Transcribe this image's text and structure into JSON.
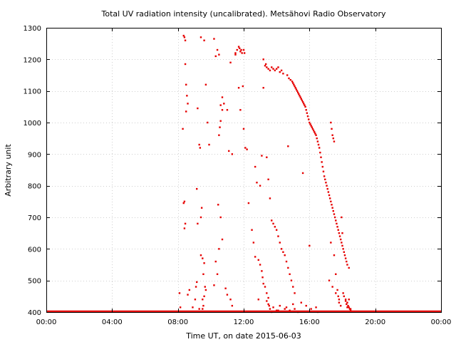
{
  "chart_data": {
    "type": "scatter",
    "title": "Total UV radiation intensity (uncalibrated). Metsähovi Radio Observatory",
    "xlabel": "Time UT, on date 2015-06-03",
    "ylabel": "Arbitrary unit",
    "xlim": [
      0,
      24
    ],
    "ylim": [
      400,
      1300
    ],
    "x_tick_labels": [
      "00:00",
      "04:00",
      "08:00",
      "12:00",
      "16:00",
      "20:00",
      "00:00"
    ],
    "x_ticks": [
      0,
      4,
      8,
      12,
      16,
      20,
      24
    ],
    "y_ticks": [
      400,
      500,
      600,
      700,
      800,
      900,
      1000,
      1100,
      1200,
      1300
    ],
    "grid": true,
    "legend": "none",
    "series_color": "#e60000",
    "baseline": {
      "value": 400,
      "x_range": [
        0,
        24
      ]
    },
    "series": [
      {
        "x": [
          8.1,
          8.15,
          8.3,
          8.35,
          8.4,
          8.45,
          8.4,
          8.35,
          8.4,
          8.45,
          8.5,
          8.55,
          8.6,
          8.5,
          8.45,
          8.6,
          8.7,
          8.9,
          9.05,
          9.1,
          9.15,
          9.2,
          9.15,
          9.3,
          9.4,
          9.6,
          9.7,
          9.8,
          9.9,
          9.35,
          9.4,
          9.5,
          9.6,
          9.55,
          9.65,
          9.7,
          9.6,
          9.5,
          9.55,
          9.5,
          9.45,
          9.4,
          9.2,
          9.3,
          10.2,
          10.3,
          10.4,
          10.5,
          10.6,
          10.7,
          10.8,
          11.0,
          11.1,
          11.3,
          11.5,
          11.6,
          11.7,
          11.75,
          11.8,
          11.85,
          11.9,
          12.0,
          12.05,
          11.95,
          11.7,
          11.5,
          11.2,
          10.7,
          10.6,
          10.55,
          10.5,
          10.45,
          10.6,
          10.7,
          10.5,
          10.3,
          10.4,
          10.2,
          10.9,
          11.0,
          11.2,
          11.3,
          11.8,
          12.0,
          12.1,
          12.2,
          12.3,
          12.5,
          12.6,
          12.7,
          12.9,
          13.0,
          13.1,
          13.15,
          13.2,
          13.3,
          13.4,
          13.5,
          13.55,
          13.6,
          12.7,
          12.8,
          13.0,
          13.1,
          13.2,
          13.3,
          13.35,
          13.4,
          13.5,
          13.6,
          13.7,
          13.8,
          13.9,
          14.0,
          14.1,
          14.2,
          14.3,
          14.4,
          13.2,
          13.4,
          13.5,
          13.6,
          13.7,
          13.8,
          13.9,
          14.0,
          14.1,
          14.2,
          14.3,
          14.4,
          14.5,
          14.6,
          14.7,
          14.8,
          14.9,
          15.0,
          15.1,
          12.9,
          13.4,
          13.5,
          13.8,
          14.0,
          13.7,
          14.2,
          14.5,
          14.1,
          14.6,
          15.0,
          15.5,
          15.1,
          15.3,
          15.8,
          16.1,
          14.8,
          16.4,
          14.65,
          14.75,
          14.85,
          14.95,
          15.0,
          15.05,
          15.1,
          15.15,
          15.2,
          15.25,
          15.3,
          15.35,
          15.4,
          15.45,
          15.5,
          15.55,
          15.6,
          15.65,
          15.7,
          15.75,
          15.8,
          15.85,
          15.9,
          15.95,
          16.0,
          16.05,
          16.1,
          16.15,
          16.2,
          16.25,
          16.3,
          16.35,
          16.4,
          16.45,
          16.5,
          16.55,
          16.6,
          16.65,
          16.7,
          16.75,
          16.8,
          16.85,
          16.9,
          16.95,
          17.0,
          17.05,
          17.1,
          17.15,
          17.2,
          17.25,
          17.3,
          17.35,
          17.4,
          17.45,
          17.5,
          17.55,
          17.6,
          17.65,
          17.7,
          17.75,
          17.8,
          17.85,
          17.9,
          17.95,
          18.0,
          18.05,
          18.1,
          18.15,
          18.2,
          18.25,
          18.3,
          18.4,
          14.7,
          15.6,
          16.0,
          16.5,
          17.3,
          17.5,
          17.6,
          17.7,
          17.75,
          17.8,
          17.9,
          17.3,
          17.35,
          17.4,
          17.5,
          17.45,
          17.95,
          18.0,
          18.05,
          18.1,
          18.2,
          18.3,
          18.35,
          18.4,
          18.45,
          18.5,
          18.55,
          18.2,
          18.25,
          18.3,
          18.4,
          18.5,
          17.2,
          17.4,
          17.6,
          17.8
        ],
        "y": [
          460,
          415,
          980,
          745,
          750,
          1260,
          1270,
          1275,
          665,
          680,
          1120,
          1085,
          1060,
          1035,
          1185,
          455,
          470,
          415,
          440,
          480,
          495,
          1045,
          790,
          930,
          1270,
          1260,
          1120,
          1000,
          930,
          920,
          580,
          570,
          555,
          520,
          480,
          470,
          450,
          440,
          420,
          410,
          730,
          700,
          680,
          410,
          1265,
          1210,
          1230,
          1215,
          1055,
          1080,
          1060,
          1040,
          910,
          900,
          1220,
          1230,
          1240,
          1235,
          1225,
          1230,
          1220,
          1230,
          1220,
          1115,
          1110,
          1215,
          1190,
          1040,
          1005,
          985,
          960,
          740,
          700,
          630,
          600,
          560,
          520,
          485,
          475,
          455,
          440,
          420,
          1040,
          980,
          920,
          915,
          745,
          660,
          620,
          575,
          565,
          550,
          530,
          510,
          490,
          480,
          460,
          445,
          420,
          410,
          860,
          810,
          800,
          895,
          1200,
          1180,
          1185,
          1175,
          1170,
          1165,
          1175,
          1170,
          1165,
          1170,
          1175,
          1160,
          1165,
          1155,
          1110,
          890,
          820,
          760,
          690,
          680,
          670,
          660,
          640,
          620,
          600,
          590,
          580,
          560,
          540,
          520,
          500,
          480,
          460,
          440,
          435,
          425,
          415,
          405,
          400,
          420,
          410,
          405,
          415,
          425,
          430,
          410,
          400,
          420,
          410,
          405,
          415,
          1150,
          1140,
          1135,
          1130,
          1125,
          1120,
          1115,
          1110,
          1105,
          1100,
          1095,
          1090,
          1085,
          1080,
          1075,
          1070,
          1065,
          1060,
          1055,
          1050,
          1040,
          1030,
          1020,
          1010,
          1000,
          995,
          990,
          985,
          980,
          975,
          970,
          965,
          960,
          950,
          940,
          930,
          920,
          905,
          890,
          875,
          860,
          845,
          830,
          820,
          810,
          800,
          790,
          780,
          770,
          760,
          750,
          740,
          730,
          720,
          710,
          700,
          690,
          680,
          670,
          660,
          650,
          640,
          630,
          620,
          610,
          600,
          590,
          580,
          570,
          560,
          550,
          540,
          925,
          840,
          610,
          400,
          620,
          580,
          520,
          470,
          450,
          430,
          420,
          1000,
          980,
          960,
          940,
          950,
          700,
          650,
          460,
          450,
          440,
          430,
          420,
          415,
          410,
          405,
          402,
          435,
          425,
          415,
          440,
          410,
          500,
          480,
          460,
          440
        ]
      }
    ]
  }
}
